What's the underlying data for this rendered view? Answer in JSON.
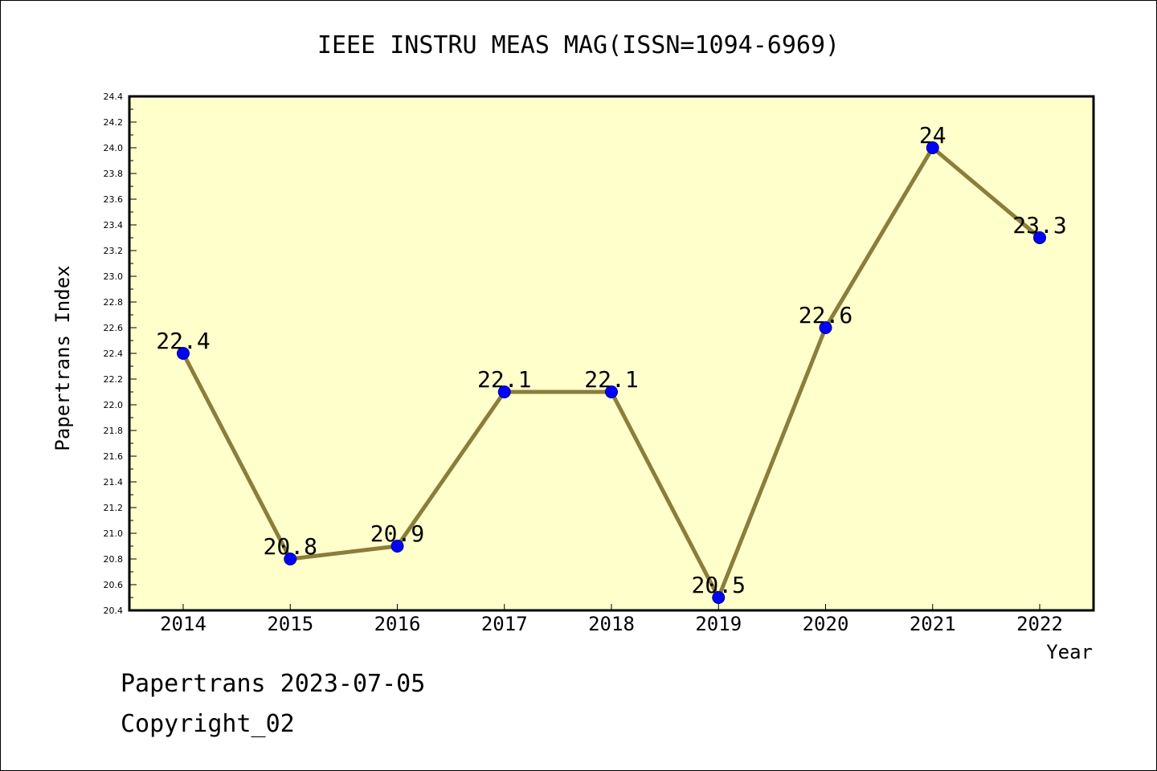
{
  "chart_data": {
    "type": "line",
    "title": "IEEE INSTRU MEAS MAG(ISSN=1094-6969)",
    "xlabel": "Year",
    "ylabel": "Papertrans Index",
    "categories": [
      "2014",
      "2015",
      "2016",
      "2017",
      "2018",
      "2019",
      "2020",
      "2021",
      "2022"
    ],
    "series": [
      {
        "values": [
          22.4,
          20.8,
          20.9,
          22.1,
          22.1,
          20.5,
          22.6,
          24.0,
          23.3
        ],
        "data_labels": [
          "22.4",
          "20.8",
          "20.9",
          "22.1",
          "22.1",
          "20.5",
          "22.6",
          "24",
          "23.3"
        ]
      }
    ],
    "ylim": [
      20.4,
      24.4
    ],
    "yticks": [
      "20.4",
      "20.6",
      "20.8",
      "21.0",
      "21.2",
      "21.4",
      "21.6",
      "21.8",
      "22.0",
      "22.2",
      "22.4",
      "22.6",
      "22.8",
      "23.0",
      "23.2",
      "23.4",
      "23.6",
      "23.8",
      "24.0",
      "24.2",
      "24.4"
    ],
    "grid": false,
    "legend": "none",
    "colors": {
      "plot_background": "#ffffcc",
      "line": "#8b7d3a",
      "marker": "#0000ff",
      "marker_edge": "#000080"
    }
  },
  "footer": {
    "line1": "Papertrans 2023-07-05",
    "line2": "Copyright_02"
  }
}
